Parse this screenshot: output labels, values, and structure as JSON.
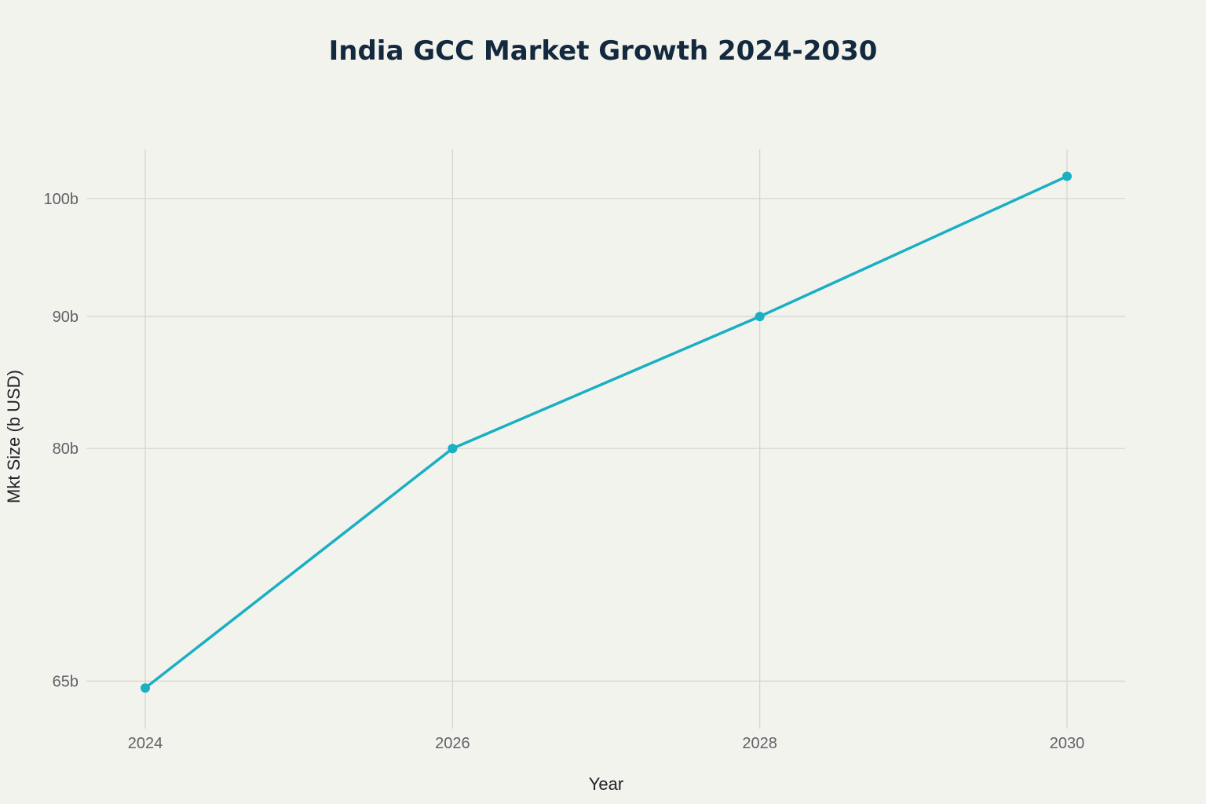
{
  "chart_data": {
    "type": "line",
    "title": "India GCC Market Growth 2024-2030",
    "xlabel": "Year",
    "ylabel": "Mkt Size (b USD)",
    "x": [
      "2024",
      "2026",
      "2028",
      "2030"
    ],
    "series": [
      {
        "values": [
          64.6,
          80,
          90,
          102
        ]
      }
    ],
    "yscale": "log",
    "y_ticks": [
      65,
      80,
      90,
      100
    ],
    "y_tick_labels": [
      "65b",
      "80b",
      "90b",
      "100b"
    ],
    "x_tick_labels": [
      "2024",
      "2026",
      "2028",
      "2030"
    ],
    "ylim": [
      62.3,
      104.5
    ],
    "grid": true,
    "line_color": "#1aafc2"
  }
}
